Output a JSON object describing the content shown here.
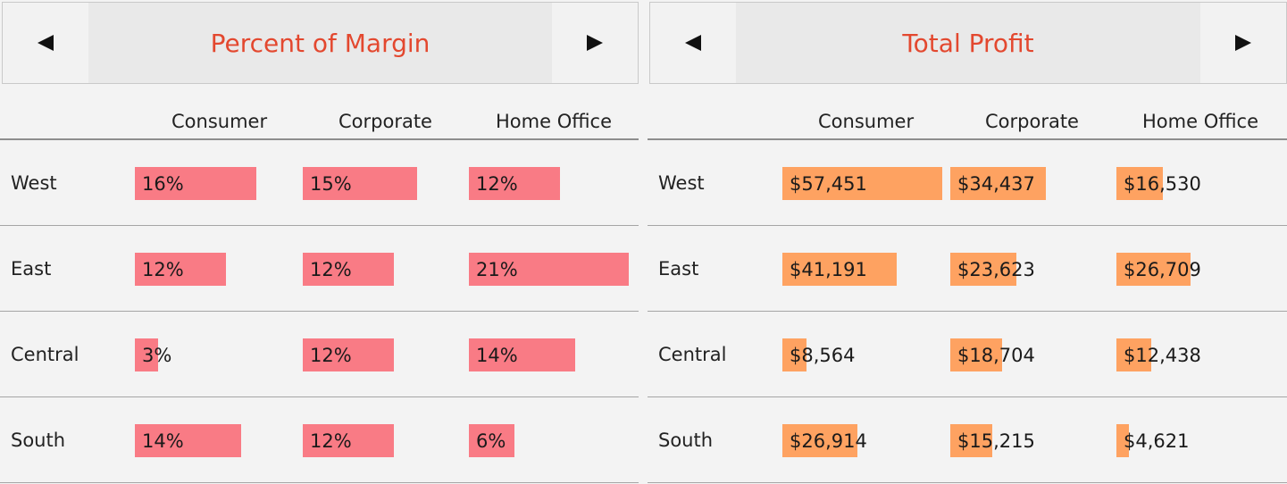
{
  "colors": {
    "title": "#e3482f",
    "margin_bar": "#f97b85",
    "profit_bar": "#fea261"
  },
  "icons": {
    "prev": "triangle-left-icon",
    "next": "triangle-right-icon"
  },
  "panels": [
    {
      "title": "Percent of Margin",
      "columns": [
        "Consumer",
        "Corporate",
        "Home Office"
      ],
      "rows": [
        {
          "label": "West",
          "cells": [
            {
              "text": "16%",
              "value": 0.16
            },
            {
              "text": "15%",
              "value": 0.15
            },
            {
              "text": "12%",
              "value": 0.12
            }
          ]
        },
        {
          "label": "East",
          "cells": [
            {
              "text": "12%",
              "value": 0.12
            },
            {
              "text": "12%",
              "value": 0.12
            },
            {
              "text": "21%",
              "value": 0.21
            }
          ]
        },
        {
          "label": "Central",
          "cells": [
            {
              "text": "3%",
              "value": 0.03
            },
            {
              "text": "12%",
              "value": 0.12
            },
            {
              "text": "14%",
              "value": 0.14
            }
          ]
        },
        {
          "label": "South",
          "cells": [
            {
              "text": "14%",
              "value": 0.14
            },
            {
              "text": "12%",
              "value": 0.12
            },
            {
              "text": "6%",
              "value": 0.06
            }
          ]
        }
      ]
    },
    {
      "title": "Total Profit",
      "columns": [
        "Consumer",
        "Corporate",
        "Home Office"
      ],
      "rows": [
        {
          "label": "West",
          "cells": [
            {
              "text": "$57,451",
              "value": 57451
            },
            {
              "text": "$34,437",
              "value": 34437
            },
            {
              "text": "$16,530",
              "value": 16530
            }
          ]
        },
        {
          "label": "East",
          "cells": [
            {
              "text": "$41,191",
              "value": 41191
            },
            {
              "text": "$23,623",
              "value": 23623
            },
            {
              "text": "$26,709",
              "value": 26709
            }
          ]
        },
        {
          "label": "Central",
          "cells": [
            {
              "text": "$8,564",
              "value": 8564
            },
            {
              "text": "$18,704",
              "value": 18704
            },
            {
              "text": "$12,438",
              "value": 12438
            }
          ]
        },
        {
          "label": "South",
          "cells": [
            {
              "text": "$26,914",
              "value": 26914
            },
            {
              "text": "$15,215",
              "value": 15215
            },
            {
              "text": "$4,621",
              "value": 4621
            }
          ]
        }
      ]
    }
  ],
  "chart_data": [
    {
      "type": "table",
      "title": "Percent of Margin",
      "categories": [
        "West",
        "East",
        "Central",
        "South"
      ],
      "series": [
        {
          "name": "Consumer",
          "values": [
            0.16,
            0.12,
            0.03,
            0.14
          ]
        },
        {
          "name": "Corporate",
          "values": [
            0.15,
            0.12,
            0.12,
            0.12
          ]
        },
        {
          "name": "Home Office",
          "values": [
            0.12,
            0.21,
            0.14,
            0.06
          ]
        }
      ]
    },
    {
      "type": "table",
      "title": "Total Profit",
      "categories": [
        "West",
        "East",
        "Central",
        "South"
      ],
      "series": [
        {
          "name": "Consumer",
          "values": [
            57451,
            41191,
            8564,
            26914
          ]
        },
        {
          "name": "Corporate",
          "values": [
            34437,
            23623,
            18704,
            15215
          ]
        },
        {
          "name": "Home Office",
          "values": [
            16530,
            26709,
            12438,
            4621
          ]
        }
      ]
    }
  ]
}
